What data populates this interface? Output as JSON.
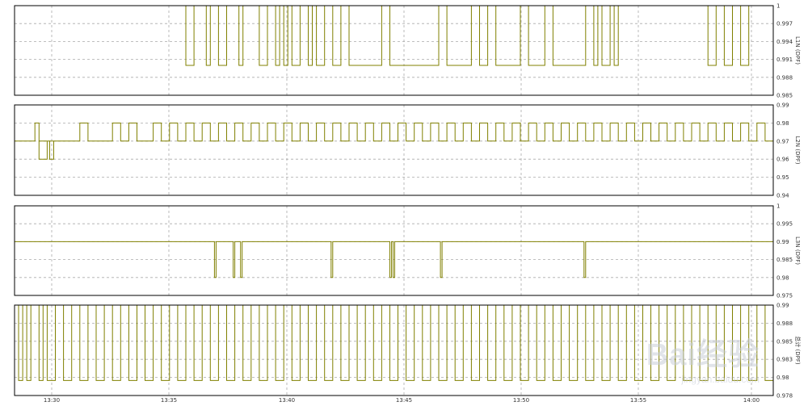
{
  "colors": {
    "signal": "#808000",
    "frame": "#000000",
    "grid": "#aaaaaa",
    "background": "#ffffff"
  },
  "watermark": {
    "text": "Bai",
    "mark": "经验",
    "url": "jingyan.baidu.com"
  },
  "time_axis": {
    "labels": [
      "13:30",
      "13:35",
      "13:40",
      "13:45",
      "13:50",
      "13:55",
      "14:00"
    ]
  },
  "chart_data": [
    {
      "type": "line",
      "step": true,
      "ylabel": "L1N (DPF)",
      "ylim": [
        0.985,
        1
      ],
      "ticks": [
        "1",
        "0.997",
        "0.994",
        "0.991",
        "0.988",
        "0.985"
      ],
      "xlim": [
        0,
        93
      ],
      "series": [
        {
          "baseline": 1.0,
          "alternate": 0.99,
          "toggles": [
            21,
            22,
            23.5,
            24,
            25,
            26,
            27.5,
            28,
            30,
            31,
            32,
            32.5,
            33,
            33.5,
            34,
            35,
            36,
            36.5,
            37,
            38,
            39,
            40,
            41,
            45,
            46,
            52,
            53,
            56,
            57,
            58,
            59,
            62,
            63,
            65,
            66,
            70,
            71,
            71.5,
            72,
            73,
            73.5,
            74,
            85,
            86,
            87,
            88,
            89,
            90
          ]
        }
      ]
    },
    {
      "type": "line",
      "step": true,
      "ylabel": "L2N (DPF)",
      "ylim": [
        0.94,
        0.99
      ],
      "ticks": [
        "0.99",
        "0.98",
        "0.97",
        "0.96",
        "0.95",
        "0.94"
      ],
      "xlim": [
        0,
        93
      ],
      "series": [
        {
          "baseline": 0.97,
          "alternate": 0.98,
          "low": 0.96,
          "dips": [
            [
              3,
              4
            ],
            [
              4.3,
              4.8
            ]
          ],
          "toggles": [
            2.5,
            3,
            8,
            9,
            12,
            13,
            14,
            15,
            17,
            18,
            19,
            20,
            21,
            22,
            23,
            24,
            25,
            26,
            27,
            28,
            29,
            30,
            31,
            32,
            33,
            34,
            35,
            36,
            37,
            38,
            39,
            40,
            41,
            42,
            43,
            44,
            45,
            46,
            47,
            48,
            49,
            50,
            51,
            52,
            53,
            54,
            55,
            56,
            57,
            58,
            59,
            60,
            61,
            62,
            63,
            64,
            65,
            66,
            67,
            68,
            69,
            70,
            71,
            72,
            73,
            74,
            75,
            76,
            77,
            78,
            79,
            80,
            81,
            82,
            83,
            84,
            85,
            86,
            87,
            88,
            89,
            90,
            91,
            92
          ]
        }
      ]
    },
    {
      "type": "line",
      "step": true,
      "ylabel": "L3N (DPF)",
      "ylim": [
        0.975,
        1
      ],
      "ticks": [
        "1",
        "0.995",
        "0.99",
        "0.985",
        "0.98",
        "0.975"
      ],
      "xlim": [
        0,
        93
      ],
      "series": [
        {
          "baseline": 0.99,
          "alternate": 0.98,
          "toggles": [
            24.5,
            24.7,
            26.8,
            27,
            27.7,
            27.9,
            38.8,
            39,
            46,
            46.2,
            46.4,
            46.6,
            52.2,
            52.4,
            69.8,
            70
          ]
        }
      ]
    },
    {
      "type": "line",
      "step": true,
      "ylabel": "总计 (DPF)",
      "ylim": [
        0.978,
        0.99
      ],
      "ticks": [
        "0.99",
        "0.988",
        "0.985",
        "0.983",
        "0.98",
        "0.978"
      ],
      "xlim": [
        0,
        93
      ],
      "series": [
        {
          "baseline": 0.99,
          "alternate": 0.98,
          "toggles": [
            0.5,
            1,
            1.5,
            2,
            3,
            3.5,
            4,
            5,
            6,
            7,
            8,
            9,
            10,
            11,
            12,
            13,
            14,
            15,
            16,
            17,
            18,
            19,
            20,
            21,
            22,
            23,
            24,
            25,
            26,
            27,
            28,
            29,
            30,
            31,
            32,
            33,
            34,
            35,
            36,
            37,
            38,
            39,
            40,
            41,
            42,
            43,
            44,
            45,
            46,
            47,
            48,
            49,
            50,
            51,
            52,
            53,
            54,
            55,
            56,
            57,
            58,
            59,
            60,
            61,
            62,
            63,
            64,
            65,
            66,
            67,
            68,
            69,
            70,
            71,
            72,
            73,
            74,
            75,
            76,
            77,
            78,
            79,
            80,
            81,
            82,
            83,
            84,
            85,
            86,
            87,
            88,
            89,
            90,
            91,
            92
          ]
        }
      ]
    }
  ]
}
